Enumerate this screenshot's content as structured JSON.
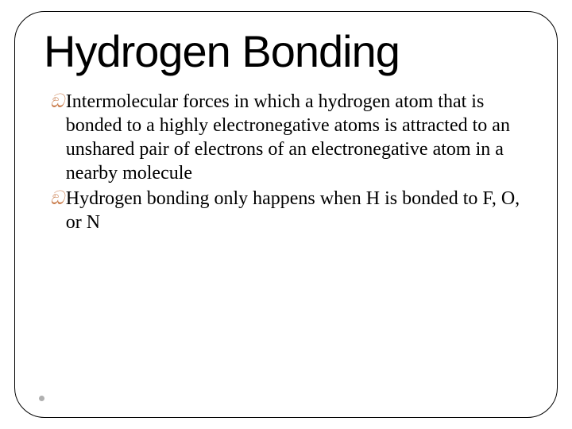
{
  "slide": {
    "title": "Hydrogen Bonding",
    "title_fontsize": 56,
    "title_color": "#000000",
    "title_font": "Verdana",
    "bullet_glyph": "ඞ",
    "bullet_color": "#c97b4a",
    "body_fontsize": 24,
    "body_color": "#000000",
    "body_font": "Times New Roman",
    "frame_border_color": "#000000",
    "frame_border_radius": 38,
    "background_color": "#ffffff",
    "footer_dot_color": "#b0b0b0",
    "bullets": [
      {
        "text": "Intermolecular forces in which a hydrogen atom that is bonded to a highly electronegative atoms is attracted to an unshared pair of electrons of an electronegative atom in a nearby molecule"
      },
      {
        "text": "Hydrogen bonding only happens when H is bonded to F, O, or N"
      }
    ]
  }
}
